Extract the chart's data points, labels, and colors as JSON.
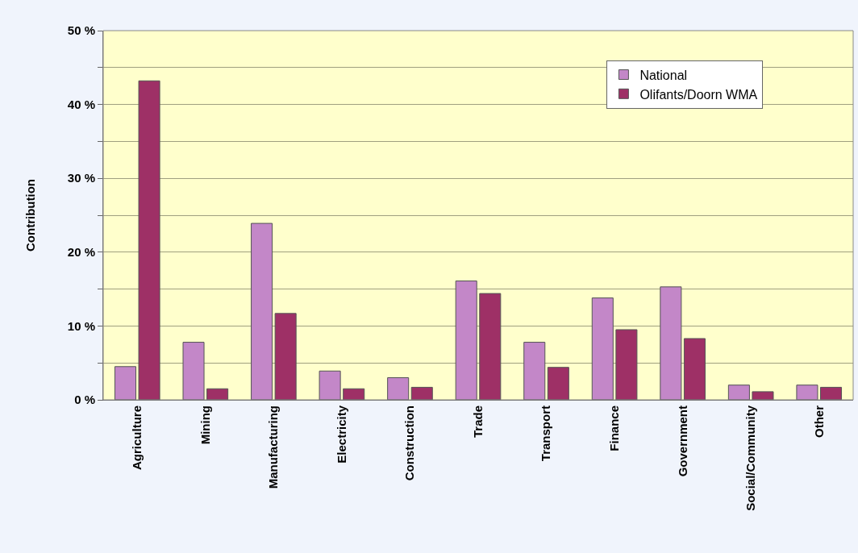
{
  "chart_data": {
    "type": "bar",
    "ylabel": "Contribution",
    "categories": [
      "Agriculture",
      "Mining",
      "Manufacturing",
      "Electricity",
      "Construction",
      "Trade",
      "Transport",
      "Finance",
      "Government",
      "Social/Community",
      "Other"
    ],
    "series": [
      {
        "name": "National",
        "color": "#c387c8",
        "values": [
          4.5,
          7.8,
          23.9,
          3.9,
          3.0,
          16.1,
          7.8,
          13.8,
          15.3,
          2.0,
          2.0
        ]
      },
      {
        "name": "Olifants/Doorn WMA",
        "color": "#9e3066",
        "values": [
          43.2,
          1.5,
          11.7,
          1.5,
          1.7,
          14.4,
          4.4,
          9.5,
          8.3,
          1.1,
          1.7
        ]
      }
    ],
    "ylim": [
      0,
      50
    ],
    "yticks": [
      {
        "value": 0,
        "label": "0 %"
      },
      {
        "value": 5,
        "label": null
      },
      {
        "value": 10,
        "label": "10 %"
      },
      {
        "value": 15,
        "label": null
      },
      {
        "value": 20,
        "label": "20 %"
      },
      {
        "value": 25,
        "label": null
      },
      {
        "value": 30,
        "label": "30 %"
      },
      {
        "value": 35,
        "label": null
      },
      {
        "value": 40,
        "label": "40 %"
      },
      {
        "value": 45,
        "label": null
      },
      {
        "value": 50,
        "label": "50 %"
      }
    ],
    "grid": "y",
    "legend": "top right"
  }
}
